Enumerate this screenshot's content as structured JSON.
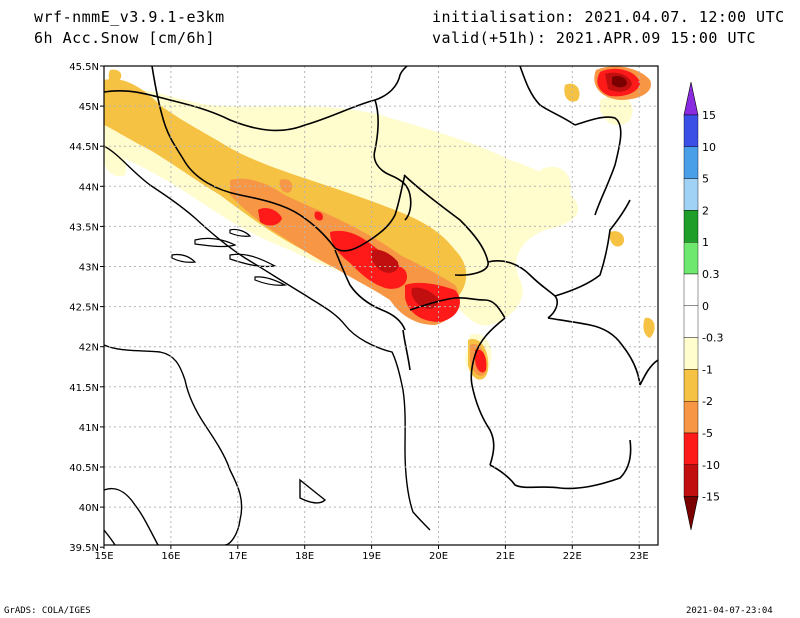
{
  "header": {
    "model": "wrf-nmmE_v3.9.1-e3km",
    "field": "6h Acc.Snow [cm/6h]",
    "init": "initialisation: 2021.04.07.  12:00 UTC",
    "valid": "valid(+51h): 2021.APR.09 15:00 UTC"
  },
  "footer": {
    "credit": "GrADS: COLA/IGES",
    "timestamp": "2021-04-07-23:04"
  },
  "map": {
    "lon_labels": [
      "15E",
      "16E",
      "17E",
      "18E",
      "19E",
      "20E",
      "21E",
      "22E",
      "23E"
    ],
    "lat_labels": [
      "45.5N",
      "45N",
      "44.5N",
      "44N",
      "43.5N",
      "43N",
      "42.5N",
      "42N",
      "41.5N",
      "41N",
      "40.5N",
      "40N",
      "39.5N"
    ]
  },
  "colorbar": {
    "labels": [
      "15",
      "10",
      "5",
      "2",
      "1",
      "0.3",
      "0",
      "-0.3",
      "-1",
      "-2",
      "-5",
      "-10",
      "-15"
    ],
    "colors": [
      "#8a2be2",
      "#3b4fe6",
      "#4aa0e8",
      "#9fd2f5",
      "#1f9e2a",
      "#6ee86e",
      "#ffffff",
      "#ffffff",
      "#fffccd",
      "#f6c243",
      "#f79745",
      "#ff1a1a",
      "#c10f0f",
      "#7a0000"
    ]
  },
  "snow_colors": {
    "light": "#fffccd",
    "moderate": "#f6c243",
    "heavy": "#f79745",
    "very_heavy": "#ff1a1a",
    "extreme": "#c10f0f",
    "max": "#7a0000"
  }
}
